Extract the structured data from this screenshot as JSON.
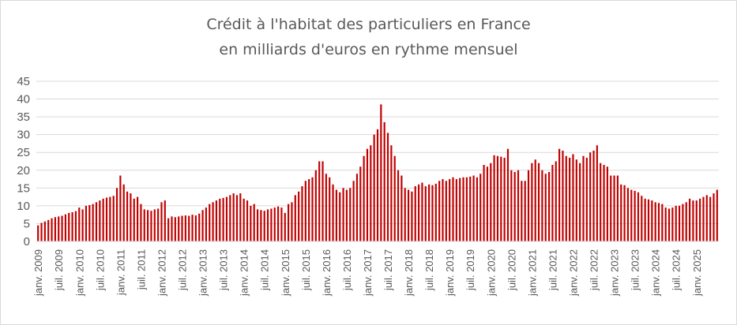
{
  "chart_data": {
    "type": "bar",
    "title": "Crédit à l'habitat des particuliers en France",
    "subtitle": "en milliards d'euros en rythme mensuel",
    "ylim": [
      0,
      45
    ],
    "yticks": [
      0,
      5,
      10,
      15,
      20,
      25,
      30,
      35,
      40,
      45
    ],
    "grid": true,
    "bar_color": "#c00000",
    "x_start": "2009-01",
    "x_tick_labels": [
      "janv. 2009",
      "juil. 2009",
      "janv. 2010",
      "juil. 2010",
      "janv. 2011",
      "juil. 2011",
      "janv. 2012",
      "juil. 2012",
      "janv. 2013",
      "juil. 2013",
      "janv. 2014",
      "juil. 2014",
      "janv. 2015",
      "juil. 2015",
      "janv. 2016",
      "juil. 2016",
      "janv. 2017",
      "juil. 2017",
      "janv. 2018",
      "juil. 2018",
      "janv. 2019",
      "juil. 2019",
      "janv. 2020",
      "juil. 2020",
      "janv. 2021",
      "juil. 2021",
      "janv. 2022",
      "juil. 2022",
      "janv. 2023",
      "juil. 2023",
      "janv. 2024",
      "juil. 2024",
      "janv. 2025"
    ],
    "values": [
      4.5,
      5.2,
      5.6,
      6,
      6.5,
      6.8,
      7,
      7.2,
      7.6,
      8,
      8.2,
      8.5,
      9.5,
      9,
      10,
      10.2,
      10.5,
      11,
      11.5,
      12,
      12.3,
      12.5,
      12.8,
      15,
      18.5,
      16,
      14,
      13.5,
      12,
      12.5,
      10.5,
      9,
      8.8,
      8.6,
      9,
      9.2,
      11,
      11.5,
      6.5,
      7,
      6.8,
      7,
      7.2,
      7.3,
      7.2,
      7.5,
      7.3,
      7.8,
      8.8,
      9.5,
      10.5,
      11,
      11.5,
      12,
      12.2,
      12.5,
      13,
      13.5,
      13,
      13.5,
      12,
      11.5,
      10,
      10.5,
      9,
      8.8,
      8.6,
      9,
      9.2,
      9.5,
      9.8,
      9.5,
      8,
      10.5,
      11,
      13,
      14,
      15.5,
      17,
      17.5,
      18,
      20,
      22.5,
      22.5,
      19,
      18,
      16,
      14.5,
      13.8,
      15,
      14.5,
      15,
      17,
      19,
      21,
      24,
      26,
      27,
      30,
      31.5,
      38.5,
      33.5,
      30.5,
      27,
      24,
      20,
      18.5,
      15,
      14.5,
      14,
      15.5,
      16,
      16.5,
      15.5,
      16,
      15.8,
      16.2,
      17,
      17.5,
      17,
      17.5,
      18,
      17.5,
      17.8,
      18,
      18,
      18.2,
      18.5,
      18,
      19,
      21.5,
      21,
      22,
      24.2,
      24,
      23.8,
      23.5,
      26,
      20,
      19.5,
      20,
      17,
      17,
      20,
      22,
      23,
      22,
      20,
      19,
      19.5,
      21.5,
      22.5,
      26,
      25.5,
      24,
      23.5,
      24.5,
      23,
      22,
      24,
      23.5,
      25,
      25.5,
      27,
      22,
      21.5,
      21,
      18.5,
      18.5,
      18.5,
      16,
      15.8,
      15,
      14.5,
      14.2,
      13.8,
      12.8,
      12,
      11.8,
      11.5,
      11,
      10.8,
      10.5,
      9.5,
      9.2,
      9.5,
      10,
      10,
      10.5,
      11,
      12,
      11.5,
      11.5,
      12,
      12.5,
      13,
      12.5,
      13.5,
      14.5
    ]
  }
}
